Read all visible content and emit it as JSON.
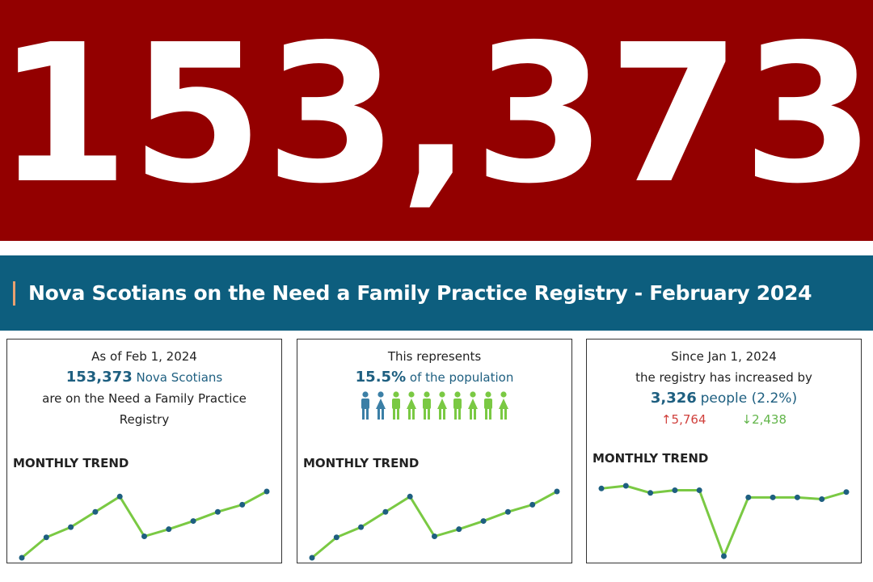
{
  "hero": {
    "number": "153,373"
  },
  "banner": {
    "title": "Nova Scotians on the Need a Family Practice Registry - February 2024"
  },
  "cards": [
    {
      "line1": "As of Feb 1, 2024",
      "value": "153,373",
      "value_suffix": "Nova Scotians",
      "line3": "are on the Need a Family Practice",
      "line4": "Registry",
      "trend_label": "MONTHLY TREND"
    },
    {
      "line1": "This represents",
      "value": "15.5%",
      "value_suffix": "of the population",
      "icons_highlighted": 2,
      "icons_total": 10,
      "trend_label": "MONTHLY TREND"
    },
    {
      "line1": "Since Jan 1, 2024",
      "line2": "the registry has increased by",
      "value": "3,326",
      "value_suffix": "people (2.2%)",
      "up": "↑5,764",
      "down": "↓2,438",
      "trend_label": "MONTHLY TREND"
    }
  ],
  "colors": {
    "hero": "#930000",
    "banner": "#0d5e7e",
    "line": "#7ac943",
    "point": "#1e5f80",
    "highlight_person": "#3b7fa6",
    "person": "#7ac943"
  },
  "chart_data": [
    {
      "type": "line",
      "title": "MONTHLY TREND",
      "values": [
        1,
        3,
        4,
        5.5,
        7,
        3.1,
        3.8,
        4.6,
        5.5,
        6.2,
        7.5
      ]
    },
    {
      "type": "line",
      "title": "MONTHLY TREND",
      "values": [
        1,
        3,
        4,
        5.5,
        7,
        3.1,
        3.8,
        4.6,
        5.5,
        6.2,
        7.5
      ]
    },
    {
      "type": "line",
      "title": "MONTHLY TREND",
      "values": [
        7.6,
        7.9,
        7.1,
        7.4,
        7.4,
        0,
        6.6,
        6.6,
        6.6,
        6.4,
        7.2
      ]
    }
  ]
}
